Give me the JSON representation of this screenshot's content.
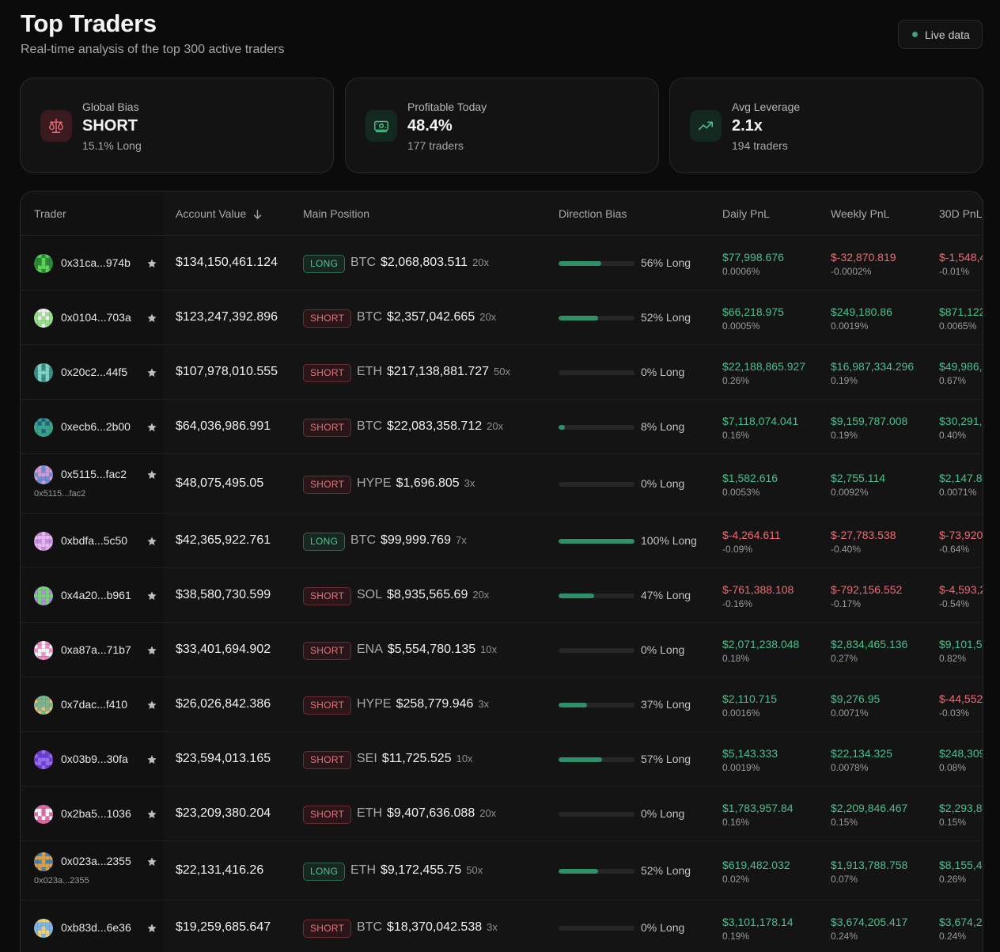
{
  "header": {
    "title": "Top Traders",
    "subtitle": "Real-time analysis of the top 300 active traders",
    "live_label": "Live data"
  },
  "stats": [
    {
      "label": "Global Bias",
      "value": "SHORT",
      "sub": "15.1% Long",
      "icon": "scale-icon",
      "tone": "red"
    },
    {
      "label": "Profitable Today",
      "value": "48.4%",
      "sub": "177 traders",
      "icon": "banknote-icon",
      "tone": "green"
    },
    {
      "label": "Avg Leverage",
      "value": "2.1x",
      "sub": "194 traders",
      "icon": "trending-up-icon",
      "tone": "green"
    }
  ],
  "table": {
    "columns": [
      "Trader",
      "Account Value",
      "Main Position",
      "Direction Bias",
      "Daily PnL",
      "Weekly PnL",
      "30D PnL"
    ],
    "sort_column": "Account Value",
    "rows": [
      {
        "trader": "0x31ca...974b",
        "sub": "",
        "avatar": [
          "#5fd35a",
          "#2c8a37"
        ],
        "account": "$134,150,461.124",
        "side": "LONG",
        "asset": "BTC",
        "amount": "$2,068,803.511",
        "lev": "20x",
        "bias": 56,
        "bias_label": "56% Long",
        "daily": "$77,998.676",
        "daily_pct": "0.0006%",
        "daily_pos": true,
        "weekly": "$-32,870.819",
        "weekly_pct": "-0.0002%",
        "weekly_pos": false,
        "d30": "$-1,548,4",
        "d30_pct": "-0.01%",
        "d30_pos": false
      },
      {
        "trader": "0x0104...703a",
        "sub": "",
        "avatar": [
          "#9be08f",
          "#f2f2f2"
        ],
        "account": "$123,247,392.896",
        "side": "SHORT",
        "asset": "BTC",
        "amount": "$2,357,042.665",
        "lev": "20x",
        "bias": 52,
        "bias_label": "52% Long",
        "daily": "$66,218.975",
        "daily_pct": "0.0005%",
        "daily_pos": true,
        "weekly": "$249,180.86",
        "weekly_pct": "0.0019%",
        "weekly_pos": true,
        "d30": "$871,122",
        "d30_pct": "0.0065%",
        "d30_pos": true
      },
      {
        "trader": "0x20c2...44f5",
        "sub": "",
        "avatar": [
          "#7fd6c6",
          "#3a8f83"
        ],
        "account": "$107,978,010.555",
        "side": "SHORT",
        "asset": "ETH",
        "amount": "$217,138,881.727",
        "lev": "50x",
        "bias": 0,
        "bias_label": "0% Long",
        "daily": "$22,188,865.927",
        "daily_pct": "0.26%",
        "daily_pos": true,
        "weekly": "$16,987,334.296",
        "weekly_pct": "0.19%",
        "weekly_pos": true,
        "d30": "$49,986,",
        "d30_pct": "0.67%",
        "d30_pos": true
      },
      {
        "trader": "0xecb6...2b00",
        "sub": "",
        "avatar": [
          "#3aa58a",
          "#1f5f86"
        ],
        "account": "$64,036,986.991",
        "side": "SHORT",
        "asset": "BTC",
        "amount": "$22,083,358.712",
        "lev": "20x",
        "bias": 8,
        "bias_label": "8% Long",
        "daily": "$7,118,074.041",
        "daily_pct": "0.16%",
        "daily_pos": true,
        "weekly": "$9,159,787.008",
        "weekly_pct": "0.19%",
        "weekly_pos": true,
        "d30": "$30,291,",
        "d30_pct": "0.40%",
        "d30_pos": true
      },
      {
        "trader": "0x5115...fac2",
        "sub": "0x5115...fac2",
        "avatar": [
          "#d39ad6",
          "#6c8fd8"
        ],
        "account": "$48,075,495.05",
        "side": "SHORT",
        "asset": "HYPE",
        "amount": "$1,696.805",
        "lev": "3x",
        "bias": 0,
        "bias_label": "0% Long",
        "daily": "$1,582.616",
        "daily_pct": "0.0053%",
        "daily_pos": true,
        "weekly": "$2,755.114",
        "weekly_pct": "0.0092%",
        "weekly_pos": true,
        "d30": "$2,147.8",
        "d30_pct": "0.0071%",
        "d30_pos": true
      },
      {
        "trader": "0xbdfa...5c50",
        "sub": "",
        "avatar": [
          "#c58be0",
          "#e6b7f0"
        ],
        "account": "$42,365,922.761",
        "side": "LONG",
        "asset": "BTC",
        "amount": "$99,999.769",
        "lev": "7x",
        "bias": 100,
        "bias_label": "100% Long",
        "daily": "$-4,264.611",
        "daily_pct": "-0.09%",
        "daily_pos": false,
        "weekly": "$-27,783.538",
        "weekly_pct": "-0.40%",
        "weekly_pos": false,
        "d30": "$-73,920",
        "d30_pct": "-0.64%",
        "d30_pos": false
      },
      {
        "trader": "0x4a20...b961",
        "sub": "",
        "avatar": [
          "#b48be6",
          "#7ad27a"
        ],
        "account": "$38,580,730.599",
        "side": "SHORT",
        "asset": "SOL",
        "amount": "$8,935,565.69",
        "lev": "20x",
        "bias": 47,
        "bias_label": "47% Long",
        "daily": "$-761,388.108",
        "daily_pct": "-0.16%",
        "daily_pos": false,
        "weekly": "$-792,156.552",
        "weekly_pct": "-0.17%",
        "weekly_pos": false,
        "d30": "$-4,593,2",
        "d30_pct": "-0.54%",
        "d30_pos": false
      },
      {
        "trader": "0xa87a...71b7",
        "sub": "",
        "avatar": [
          "#f08cc8",
          "#f4f4f4"
        ],
        "account": "$33,401,694.902",
        "side": "SHORT",
        "asset": "ENA",
        "amount": "$5,554,780.135",
        "lev": "10x",
        "bias": 0,
        "bias_label": "0% Long",
        "daily": "$2,071,238.048",
        "daily_pct": "0.18%",
        "daily_pos": true,
        "weekly": "$2,834,465.136",
        "weekly_pct": "0.27%",
        "weekly_pos": true,
        "d30": "$9,101,5",
        "d30_pct": "0.82%",
        "d30_pos": true
      },
      {
        "trader": "0x7dac...f410",
        "sub": "",
        "avatar": [
          "#e3c07a",
          "#7fb58c"
        ],
        "account": "$26,026,842.386",
        "side": "SHORT",
        "asset": "HYPE",
        "amount": "$258,779.946",
        "lev": "3x",
        "bias": 37,
        "bias_label": "37% Long",
        "daily": "$2,110.715",
        "daily_pct": "0.0016%",
        "daily_pos": true,
        "weekly": "$9,276.95",
        "weekly_pct": "0.0071%",
        "weekly_pos": true,
        "d30": "$-44,552",
        "d30_pct": "-0.03%",
        "d30_pos": false
      },
      {
        "trader": "0x03b9...30fa",
        "sub": "",
        "avatar": [
          "#6a3fd6",
          "#9a6cf0"
        ],
        "account": "$23,594,013.165",
        "side": "SHORT",
        "asset": "SEI",
        "amount": "$11,725.525",
        "lev": "10x",
        "bias": 57,
        "bias_label": "57% Long",
        "daily": "$5,143.333",
        "daily_pct": "0.0019%",
        "daily_pos": true,
        "weekly": "$22,134.325",
        "weekly_pct": "0.0078%",
        "weekly_pos": true,
        "d30": "$248,309",
        "d30_pct": "0.08%",
        "d30_pos": true
      },
      {
        "trader": "0x2ba5...1036",
        "sub": "",
        "avatar": [
          "#f4f4f4",
          "#e06aa6"
        ],
        "account": "$23,209,380.204",
        "side": "SHORT",
        "asset": "ETH",
        "amount": "$9,407,636.088",
        "lev": "20x",
        "bias": 0,
        "bias_label": "0% Long",
        "daily": "$1,783,957.84",
        "daily_pct": "0.16%",
        "daily_pos": true,
        "weekly": "$2,209,846.467",
        "weekly_pct": "0.15%",
        "weekly_pos": true,
        "d30": "$2,293,8",
        "d30_pct": "0.15%",
        "d30_pos": true
      },
      {
        "trader": "0x023a...2355",
        "sub": "0x023a...2355",
        "avatar": [
          "#4a7fb0",
          "#d9a24a"
        ],
        "account": "$22,131,416.26",
        "side": "LONG",
        "asset": "ETH",
        "amount": "$9,172,455.75",
        "lev": "50x",
        "bias": 52,
        "bias_label": "52% Long",
        "daily": "$619,482.032",
        "daily_pct": "0.02%",
        "daily_pos": true,
        "weekly": "$1,913,788.758",
        "weekly_pct": "0.07%",
        "weekly_pos": true,
        "d30": "$8,155,4",
        "d30_pct": "0.26%",
        "d30_pos": true
      },
      {
        "trader": "0xb83d...6e36",
        "sub": "",
        "avatar": [
          "#7fb6e6",
          "#e8d27a"
        ],
        "account": "$19,259,685.647",
        "side": "SHORT",
        "asset": "BTC",
        "amount": "$18,370,042.538",
        "lev": "3x",
        "bias": 0,
        "bias_label": "0% Long",
        "daily": "$3,101,178.14",
        "daily_pct": "0.19%",
        "daily_pos": true,
        "weekly": "$3,674,205.417",
        "weekly_pct": "0.24%",
        "weekly_pos": true,
        "d30": "$3,674,2",
        "d30_pct": "0.24%",
        "d30_pos": true
      }
    ]
  }
}
